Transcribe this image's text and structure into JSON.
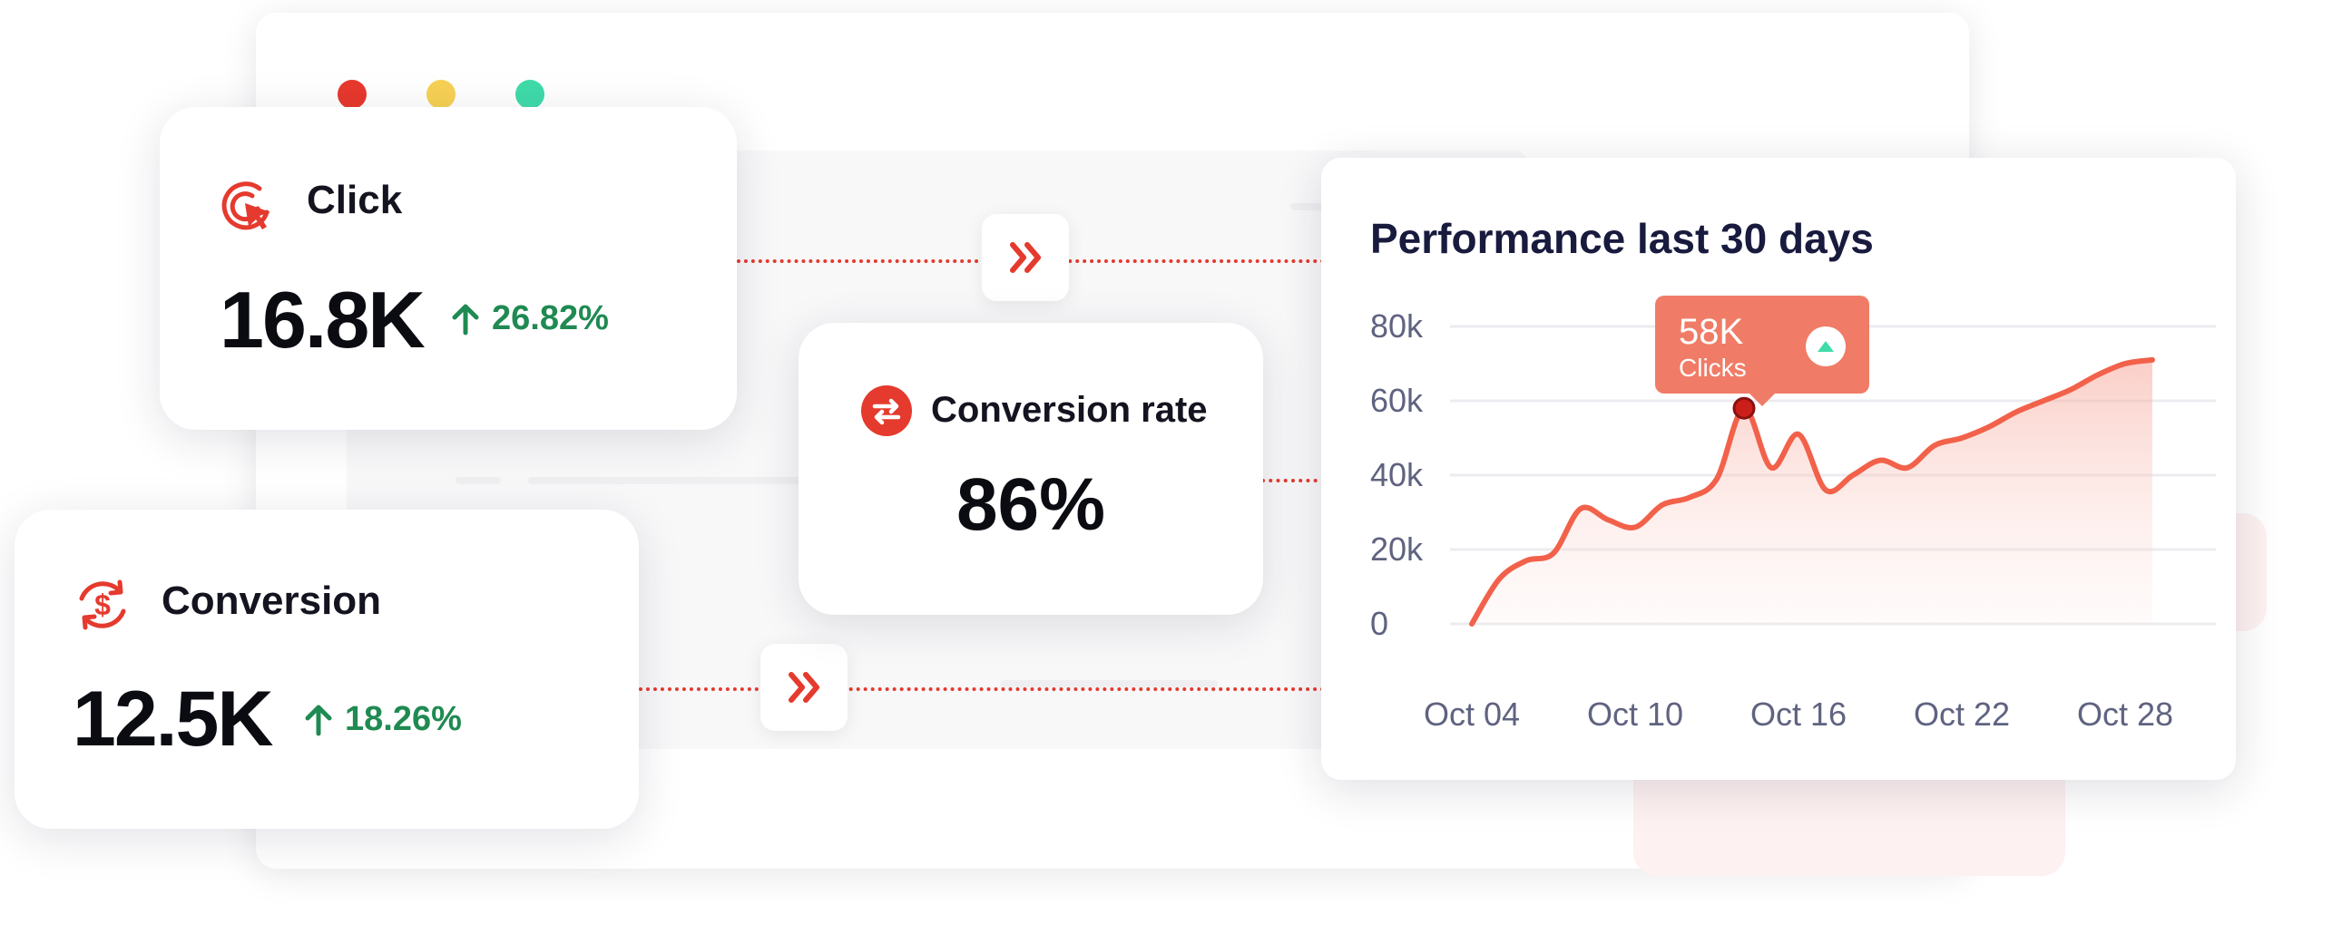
{
  "window": {
    "dots": [
      "#e8382d",
      "#f7d154",
      "#3fdba9"
    ]
  },
  "cards": {
    "click": {
      "title": "Click",
      "value": "16.8K",
      "delta": "26.82%",
      "icon": "cursor-target-icon"
    },
    "conversion_rate": {
      "title": "Conversion rate",
      "value": "86%",
      "icon": "swap-arrows-icon"
    },
    "conversion": {
      "title": "Conversion",
      "value": "12.5K",
      "delta": "18.26%",
      "icon": "dollar-cycle-icon"
    }
  },
  "colors": {
    "accent": "#e53a2e",
    "positive": "#1f8a52",
    "line": "#f2614a",
    "tooltip": "#f07c67",
    "title": "#181a3e"
  },
  "chart": {
    "title": "Performance last 30 days",
    "tooltip": {
      "value": "58K",
      "label": "Clicks"
    }
  },
  "chart_data": {
    "type": "area",
    "title": "Performance last 30 days",
    "x_tick_labels": [
      "Oct 04",
      "Oct 10",
      "Oct 16",
      "Oct 22",
      "Oct 28"
    ],
    "y_tick_labels": [
      "80k",
      "60k",
      "40k",
      "20k",
      "0"
    ],
    "y_ticks": [
      80000,
      60000,
      40000,
      20000,
      0
    ],
    "ylim": [
      0,
      80000
    ],
    "grid": true,
    "series": [
      {
        "x": [
          "Oct 04",
          "Oct 05",
          "Oct 06",
          "Oct 07",
          "Oct 08",
          "Oct 09",
          "Oct 10",
          "Oct 11",
          "Oct 12",
          "Oct 13",
          "Oct 14",
          "Oct 15",
          "Oct 16",
          "Oct 17",
          "Oct 18",
          "Oct 19",
          "Oct 20",
          "Oct 21",
          "Oct 22",
          "Oct 23",
          "Oct 24",
          "Oct 25",
          "Oct 26",
          "Oct 27",
          "Oct 28",
          "Oct 29"
        ],
        "values": [
          0,
          12000,
          17000,
          19000,
          31000,
          28000,
          26000,
          32000,
          34000,
          39000,
          58000,
          42000,
          51000,
          36000,
          40000,
          44000,
          42000,
          48000,
          50000,
          53000,
          57000,
          60000,
          63000,
          67000,
          70000,
          71000
        ]
      }
    ],
    "highlight": {
      "x": "Oct 14",
      "value": 58000,
      "label": "58K Clicks"
    }
  }
}
